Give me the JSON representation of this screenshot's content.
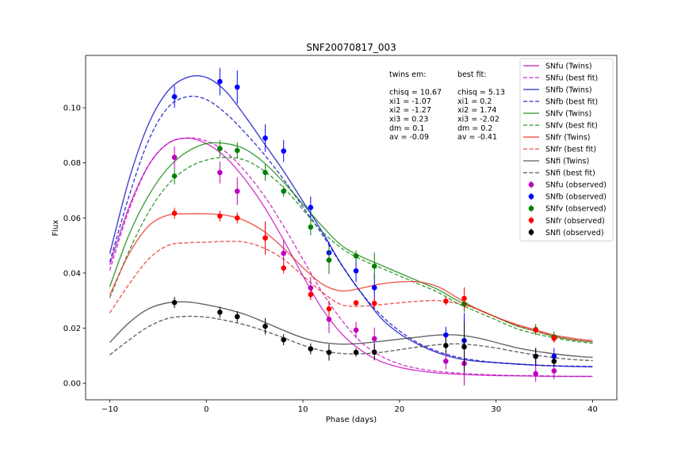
{
  "chart_data": {
    "type": "line",
    "title": "SNF20070817_003",
    "xlabel": "Phase (days)",
    "ylabel": "Flux",
    "xlim": [
      -12.5,
      42.5
    ],
    "ylim": [
      -0.006,
      0.119
    ],
    "xticks": [
      -10,
      0,
      10,
      20,
      30,
      40
    ],
    "xtick_labels": [
      "−10",
      "0",
      "10",
      "20",
      "30",
      "40"
    ],
    "yticks": [
      0.0,
      0.02,
      0.04,
      0.06,
      0.08,
      0.1
    ],
    "ytick_labels": [
      "0.00",
      "0.02",
      "0.04",
      "0.06",
      "0.08",
      "0.10"
    ],
    "grid": false,
    "legend_position": "top-right",
    "annotations": {
      "twins": [
        "twins em:",
        "",
        "chisq = 10.67",
        "xi1 = -1.07",
        "xi2 = -1.27",
        "xi3 = 0.23",
        "dm = 0.1",
        "av = -0.09"
      ],
      "best": [
        "best fit:",
        "",
        "chisq = 5.13",
        "xi1 = 0.2",
        "xi2 = 1.74",
        "xi3 = -2.02",
        "dm = 0.2",
        "av = -0.41"
      ]
    },
    "model_x": [
      -10,
      -8,
      -6,
      -4,
      -2,
      0,
      2,
      4,
      6,
      8,
      10,
      12,
      14,
      16,
      18,
      20,
      22,
      24,
      26,
      28,
      30,
      32,
      34,
      36,
      38,
      40
    ],
    "series": [
      {
        "name": "SNfu (Twins)",
        "color": "#bf00bf",
        "style": "solid",
        "values": [
          0.043,
          0.064,
          0.079,
          0.087,
          0.089,
          0.087,
          0.082,
          0.074,
          0.064,
          0.052,
          0.039,
          0.027,
          0.018,
          0.012,
          0.008,
          0.0058,
          0.0045,
          0.0037,
          0.0033,
          0.003,
          0.0028,
          0.0027,
          0.0026,
          0.0025,
          0.0025,
          0.0025
        ]
      },
      {
        "name": "SNfu (best fit)",
        "color": "#bf00bf",
        "style": "dashed",
        "values": [
          0.041,
          0.063,
          0.079,
          0.087,
          0.089,
          0.088,
          0.084,
          0.077,
          0.068,
          0.057,
          0.045,
          0.033,
          0.023,
          0.015,
          0.01,
          0.007,
          0.0053,
          0.0043,
          0.0037,
          0.0033,
          0.003,
          0.0028,
          0.0027,
          0.0026,
          0.0025,
          0.0025
        ]
      },
      {
        "name": "SNfb (Twins)",
        "color": "#0000bf",
        "style": "solid",
        "values": [
          0.047,
          0.074,
          0.094,
          0.106,
          0.111,
          0.111,
          0.106,
          0.097,
          0.087,
          0.077,
          0.066,
          0.055,
          0.043,
          0.033,
          0.024,
          0.018,
          0.014,
          0.011,
          0.009,
          0.008,
          0.0075,
          0.007,
          0.0066,
          0.0063,
          0.0061,
          0.006
        ]
      },
      {
        "name": "SNfb (best fit)",
        "color": "#0000bf",
        "style": "dashed",
        "values": [
          0.044,
          0.068,
          0.088,
          0.1,
          0.104,
          0.103,
          0.098,
          0.091,
          0.083,
          0.074,
          0.064,
          0.054,
          0.043,
          0.033,
          0.025,
          0.019,
          0.0145,
          0.0115,
          0.0095,
          0.0083,
          0.0075,
          0.007,
          0.0066,
          0.0063,
          0.0062,
          0.006
        ]
      },
      {
        "name": "SNfv (Twins)",
        "color": "#008000",
        "style": "solid",
        "values": [
          0.035,
          0.054,
          0.068,
          0.078,
          0.084,
          0.087,
          0.087,
          0.085,
          0.08,
          0.073,
          0.065,
          0.057,
          0.05,
          0.046,
          0.043,
          0.04,
          0.037,
          0.034,
          0.03,
          0.027,
          0.024,
          0.021,
          0.019,
          0.017,
          0.0158,
          0.015
        ]
      },
      {
        "name": "SNfv (best fit)",
        "color": "#008000",
        "style": "dashed",
        "values": [
          0.031,
          0.048,
          0.062,
          0.072,
          0.078,
          0.081,
          0.082,
          0.081,
          0.077,
          0.071,
          0.063,
          0.055,
          0.049,
          0.045,
          0.042,
          0.039,
          0.036,
          0.033,
          0.029,
          0.026,
          0.023,
          0.02,
          0.018,
          0.0165,
          0.0153,
          0.0145
        ]
      },
      {
        "name": "SNfr (Twins)",
        "color": "#e8261b",
        "style": "solid",
        "values": [
          0.032,
          0.047,
          0.057,
          0.061,
          0.0615,
          0.0615,
          0.061,
          0.059,
          0.055,
          0.049,
          0.042,
          0.036,
          0.0335,
          0.0345,
          0.036,
          0.0368,
          0.0368,
          0.035,
          0.031,
          0.027,
          0.024,
          0.0215,
          0.0195,
          0.0175,
          0.0163,
          0.0155
        ]
      },
      {
        "name": "SNfr (best fit)",
        "color": "#e8261b",
        "style": "dashed",
        "values": [
          0.0255,
          0.036,
          0.045,
          0.05,
          0.051,
          0.0512,
          0.0515,
          0.0512,
          0.049,
          0.045,
          0.039,
          0.033,
          0.0285,
          0.028,
          0.0285,
          0.0292,
          0.0298,
          0.03,
          0.029,
          0.027,
          0.024,
          0.0212,
          0.019,
          0.0172,
          0.0158,
          0.015
        ]
      },
      {
        "name": "SNfi (Twins)",
        "color": "#333333",
        "style": "solid",
        "values": [
          0.0148,
          0.022,
          0.027,
          0.0292,
          0.0295,
          0.0285,
          0.027,
          0.025,
          0.0222,
          0.0192,
          0.0165,
          0.0148,
          0.0142,
          0.0145,
          0.0152,
          0.016,
          0.0168,
          0.0175,
          0.0175,
          0.0165,
          0.0148,
          0.013,
          0.0117,
          0.0107,
          0.0099,
          0.0094
        ]
      },
      {
        "name": "SNfi (best fit)",
        "color": "#333333",
        "style": "dashed",
        "values": [
          0.0103,
          0.0157,
          0.0205,
          0.0235,
          0.0243,
          0.024,
          0.0228,
          0.0212,
          0.019,
          0.0165,
          0.0138,
          0.0118,
          0.0108,
          0.0107,
          0.0112,
          0.0122,
          0.0132,
          0.014,
          0.0143,
          0.0138,
          0.0128,
          0.0115,
          0.0103,
          0.0093,
          0.0086,
          0.0082
        ]
      }
    ],
    "observed": [
      {
        "name": "SNfu (observed)",
        "color": "#bf00bf",
        "points": [
          [
            -3.3,
            0.082,
            0.004
          ],
          [
            1.4,
            0.0765,
            0.004
          ],
          [
            3.2,
            0.0697,
            0.005
          ],
          [
            6.1,
            0.0528,
            0.006
          ],
          [
            8.0,
            0.0472,
            0.005
          ],
          [
            10.8,
            0.0346,
            0.004
          ],
          [
            12.7,
            0.0232,
            0.005
          ],
          [
            15.5,
            0.0193,
            0.003
          ],
          [
            17.4,
            0.0162,
            0.004
          ],
          [
            24.8,
            0.008,
            0.003
          ],
          [
            26.7,
            0.0072,
            0.008
          ],
          [
            34.1,
            0.0035,
            0.003
          ],
          [
            36.0,
            0.0045,
            0.003
          ]
        ]
      },
      {
        "name": "SNfb (observed)",
        "color": "#0000ff",
        "points": [
          [
            -3.3,
            0.104,
            0.004
          ],
          [
            1.4,
            0.1095,
            0.005
          ],
          [
            3.2,
            0.1075,
            0.006
          ],
          [
            6.1,
            0.089,
            0.005
          ],
          [
            8.0,
            0.0843,
            0.004
          ],
          [
            10.8,
            0.0638,
            0.004
          ],
          [
            12.7,
            0.0474,
            0.004
          ],
          [
            15.5,
            0.0408,
            0.004
          ],
          [
            17.4,
            0.0347,
            0.005
          ],
          [
            24.8,
            0.0175,
            0.003
          ],
          [
            26.7,
            0.0155,
            0.01
          ],
          [
            34.1,
            0.0098,
            0.003
          ],
          [
            36.0,
            0.0098,
            0.003
          ]
        ]
      },
      {
        "name": "SNfv (observed)",
        "color": "#008000",
        "points": [
          [
            -3.3,
            0.0752,
            0.003
          ],
          [
            1.4,
            0.0852,
            0.003
          ],
          [
            3.2,
            0.0845,
            0.003
          ],
          [
            6.1,
            0.0765,
            0.003
          ],
          [
            8.0,
            0.0697,
            0.002
          ],
          [
            10.8,
            0.0567,
            0.003
          ],
          [
            12.7,
            0.0447,
            0.005
          ],
          [
            15.5,
            0.0462,
            0.002
          ],
          [
            17.4,
            0.0425,
            0.005
          ],
          [
            26.7,
            0.0288,
            0.003
          ],
          [
            34.1,
            0.0195,
            0.002
          ],
          [
            36.0,
            0.0168,
            0.002
          ]
        ]
      },
      {
        "name": "SNfr (observed)",
        "color": "#ff0000",
        "points": [
          [
            -3.3,
            0.0617,
            0.002
          ],
          [
            1.4,
            0.0607,
            0.002
          ],
          [
            3.2,
            0.06,
            0.002
          ],
          [
            6.1,
            0.0527,
            0.006
          ],
          [
            8.0,
            0.0418,
            0.002
          ],
          [
            10.8,
            0.0322,
            0.002
          ],
          [
            12.7,
            0.027,
            0.003
          ],
          [
            15.5,
            0.0292,
            0.001
          ],
          [
            17.4,
            0.029,
            0.002
          ],
          [
            24.8,
            0.0298,
            0.0015
          ],
          [
            26.7,
            0.0308,
            0.004
          ],
          [
            34.1,
            0.0193,
            0.0015
          ],
          [
            36.0,
            0.0163,
            0.0015
          ]
        ]
      },
      {
        "name": "SNfi (observed)",
        "color": "#000000",
        "points": [
          [
            -3.3,
            0.0293,
            0.002
          ],
          [
            1.4,
            0.0258,
            0.002
          ],
          [
            3.2,
            0.0242,
            0.002
          ],
          [
            6.1,
            0.0207,
            0.003
          ],
          [
            8.0,
            0.0158,
            0.002
          ],
          [
            10.8,
            0.0125,
            0.002
          ],
          [
            12.7,
            0.0112,
            0.003
          ],
          [
            15.5,
            0.0112,
            0.0015
          ],
          [
            17.4,
            0.0113,
            0.003
          ],
          [
            24.8,
            0.0137,
            0.003
          ],
          [
            26.7,
            0.0132,
            0.009
          ],
          [
            34.1,
            0.0098,
            0.003
          ],
          [
            36.0,
            0.008,
            0.002
          ]
        ]
      }
    ]
  }
}
